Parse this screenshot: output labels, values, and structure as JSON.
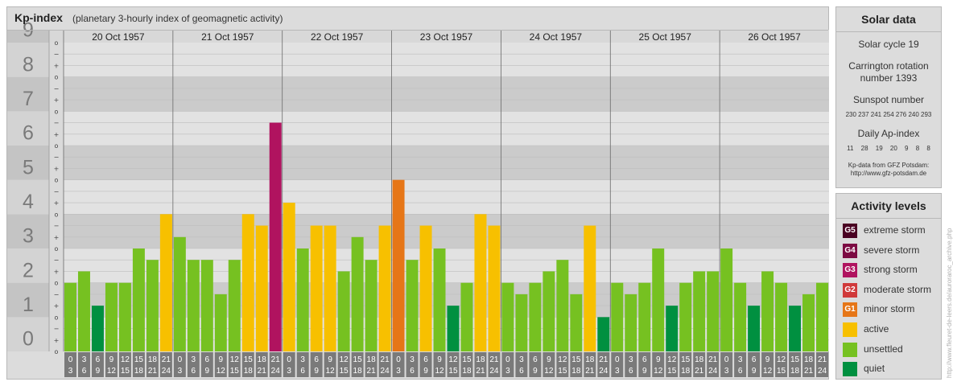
{
  "chart_data": {
    "type": "bar",
    "title": "Kp-index",
    "subtitle": "(planetary 3-hourly index of geomagnetic activity)",
    "ylim": [
      0,
      9
    ],
    "y_ticks": [
      "0",
      "1",
      "2",
      "3",
      "4",
      "5",
      "6",
      "7",
      "8",
      "9"
    ],
    "sub_ticks": [
      "o",
      "+",
      "−",
      "o",
      "+",
      "−",
      "o",
      "+",
      "−",
      "o",
      "+",
      "−",
      "o",
      "+",
      "−",
      "o",
      "+",
      "−",
      "o",
      "+",
      "−",
      "o",
      "+",
      "−",
      "o",
      "+",
      "−",
      "o"
    ],
    "days": [
      "20 Oct 1957",
      "21 Oct 1957",
      "22 Oct 1957",
      "23 Oct 1957",
      "24 Oct 1957",
      "25 Oct 1957",
      "26 Oct 1957"
    ],
    "hour_start": [
      "0",
      "3",
      "6",
      "9",
      "12",
      "15",
      "18",
      "21"
    ],
    "hour_end": [
      "3",
      "6",
      "9",
      "12",
      "15",
      "18",
      "21",
      "24"
    ],
    "values": [
      2.0,
      2.333,
      1.333,
      2.0,
      2.0,
      3.0,
      2.667,
      4.0,
      3.333,
      2.667,
      2.667,
      1.667,
      2.667,
      4.0,
      3.667,
      6.667,
      4.333,
      3.0,
      3.667,
      3.667,
      2.333,
      3.333,
      2.667,
      3.667,
      5.0,
      2.667,
      3.667,
      3.0,
      1.333,
      2.0,
      4.0,
      3.667,
      2.0,
      1.667,
      2.0,
      2.333,
      2.667,
      1.667,
      3.667,
      1.0,
      2.0,
      1.667,
      2.0,
      3.0,
      1.333,
      2.0,
      2.333,
      2.333,
      3.0,
      2.0,
      1.333,
      2.333,
      2.0,
      1.333,
      1.667,
      2.0
    ],
    "colors": {
      "quiet": "#009040",
      "unsettled": "#76c121",
      "active": "#f7c000",
      "minor_storm": "#e67617",
      "moderate_storm": "#d0393a",
      "strong_storm": "#b0135f",
      "severe_storm": "#7c0a42",
      "extreme_storm": "#4a0022"
    }
  },
  "solar": {
    "heading": "Solar data",
    "cycle": "Solar cycle 19",
    "carrington": "Carrington rotation number 1393",
    "sunspot_label": "Sunspot number",
    "sunspot_values": "230 237 241 254 276 240 293",
    "ap_label": "Daily Ap-index",
    "ap_values": "11 28 19 20 9 8 8",
    "source_line1": "Kp-data from GFZ Potsdam:",
    "source_line2": "http://www.gfz-potsdam.de"
  },
  "activity": {
    "heading": "Activity levels",
    "levels": [
      {
        "code": "G5",
        "label": "extreme storm",
        "color": "#4a0022"
      },
      {
        "code": "G4",
        "label": "severe storm",
        "color": "#7c0a42"
      },
      {
        "code": "G3",
        "label": "strong storm",
        "color": "#b0135f"
      },
      {
        "code": "G2",
        "label": "moderate storm",
        "color": "#d0393a"
      },
      {
        "code": "G1",
        "label": "minor storm",
        "color": "#e67617"
      },
      {
        "code": "",
        "label": "active",
        "color": "#f7c000"
      },
      {
        "code": "",
        "label": "unsettled",
        "color": "#76c121"
      },
      {
        "code": "",
        "label": "quiet",
        "color": "#009040"
      }
    ]
  },
  "watermark": "http://www.fleuret-de-leers.de/auroraroc_archive.php"
}
